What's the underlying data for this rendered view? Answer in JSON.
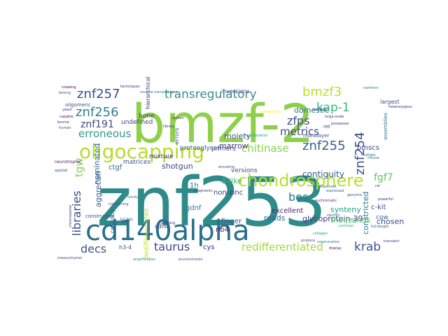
{
  "words": [
    {
      "text": "znf253",
      "color": "#2e8b8a"
    },
    {
      "text": "bmzf-2",
      "color": "#8fd04b"
    },
    {
      "text": "cd140alpha",
      "color": "#2c6e8e"
    },
    {
      "text": "oligocapping",
      "color": "#b5dd2b"
    },
    {
      "text": "chondrosphere",
      "color": "#b8de2e"
    },
    {
      "text": "znf257",
      "color": "#3a4f8a"
    },
    {
      "text": "znf256",
      "color": "#2f7f8e"
    },
    {
      "text": "znf255",
      "color": "#3b5d8c"
    },
    {
      "text": "znf254",
      "color": "#3d4c8a"
    },
    {
      "text": "transregulatory",
      "color": "#3a8c8b"
    },
    {
      "text": "bmzf3",
      "color": "#bfdf27"
    },
    {
      "text": "kap-1",
      "color": "#35b779"
    },
    {
      "text": "zfps",
      "color": "#3e4b8a"
    },
    {
      "text": "metrics",
      "color": "#404788"
    },
    {
      "text": "erroneous",
      "color": "#33978c"
    },
    {
      "text": "chitinase",
      "color": "#86d549"
    },
    {
      "text": "redifferentiated",
      "color": "#a2da37"
    },
    {
      "text": "krab",
      "color": "#3b528b"
    },
    {
      "text": "taurus",
      "color": "#3e4989"
    },
    {
      "text": "decs",
      "color": "#39568c"
    },
    {
      "text": "libraries",
      "color": "#3e4a89"
    },
    {
      "text": "bos",
      "color": "#2a788e"
    },
    {
      "text": "fgf7",
      "color": "#5ec962"
    },
    {
      "text": "znf191",
      "color": "#3f4788"
    },
    {
      "text": "tgw",
      "color": "#86d549"
    },
    {
      "text": "contiguity",
      "color": "#355f8d"
    },
    {
      "text": "marrow",
      "color": "#46337e"
    },
    {
      "text": "moiety",
      "color": "#3e4c8a"
    },
    {
      "text": "domestic",
      "color": "#2a7b8e"
    },
    {
      "text": "shotgun",
      "color": "#3f4889"
    },
    {
      "text": "glycoprotein-39",
      "color": "#443983"
    },
    {
      "text": "constricted",
      "color": "#2a768e"
    },
    {
      "text": "synteny",
      "color": "#20a386"
    },
    {
      "text": "reads",
      "color": "#31688e"
    },
    {
      "text": "chosen",
      "color": "#404688"
    },
    {
      "text": "aggrecan",
      "color": "#365c8d"
    },
    {
      "text": "nominated",
      "color": "#31668e"
    },
    {
      "text": "thousands",
      "color": "#4ac16d"
    },
    {
      "text": "3-like",
      "color": "#3bbb75"
    },
    {
      "text": "c-kit",
      "color": "#3c508b"
    },
    {
      "text": "gdnf",
      "color": "#287c8e"
    },
    {
      "text": "nb4",
      "color": "#471164"
    },
    {
      "text": "cys",
      "color": "#46307e"
    },
    {
      "text": "1h",
      "color": "#2d718e"
    },
    {
      "text": "finger",
      "color": "#3b528b"
    },
    {
      "text": "non-zinc",
      "color": "#453781"
    },
    {
      "text": "bmscs",
      "color": "#404588"
    },
    {
      "text": "excellent",
      "color": "#482475"
    },
    {
      "text": "primers",
      "color": "#3e4c8a"
    },
    {
      "text": "versions",
      "color": "#39558c"
    },
    {
      "text": "ctgf",
      "color": "#31688e"
    },
    {
      "text": "matrices",
      "color": "#3a538b"
    },
    {
      "text": "mixture",
      "color": "#46307e"
    },
    {
      "text": "proteoglycan",
      "color": "#3b528b"
    },
    {
      "text": "bone",
      "color": "#443983"
    },
    {
      "text": "undefined",
      "color": "#424086"
    },
    {
      "text": "oligomeric",
      "color": "#3d4e8a"
    },
    {
      "text": "inversions",
      "color": "#3f4889"
    },
    {
      "text": "hierarchical",
      "color": "#46317e"
    },
    {
      "text": "errors",
      "color": "#355e8d"
    },
    {
      "text": "largest",
      "color": "#3b528b"
    },
    {
      "text": "cow",
      "color": "#2d708e"
    },
    {
      "text": "cdna",
      "color": "#443a83"
    },
    {
      "text": "scan",
      "color": "#2e6f8e"
    },
    {
      "text": "covering",
      "color": "#2f6c8e"
    },
    {
      "text": "h3-4",
      "color": "#3a538b"
    },
    {
      "text": "dedifferentiated",
      "color": "#c5e021"
    },
    {
      "text": "monolayer",
      "color": "#3e4a89"
    },
    {
      "text": "ret",
      "color": "#453882"
    },
    {
      "text": "constructed",
      "color": "#3f4889"
    },
    {
      "text": "neurotrophic",
      "color": "#48186a"
    },
    {
      "text": "assemblies",
      "color": "#2c728e"
    },
    {
      "text": "creating",
      "color": "#440154"
    },
    {
      "text": "techniques",
      "color": "#472d7b"
    },
    {
      "text": "reverse transcriptase",
      "color": "#2c728e"
    },
    {
      "text": "large-scale",
      "color": "#46327e"
    },
    {
      "text": "comparison",
      "color": "#fde725"
    },
    {
      "text": "hybridization",
      "color": "#1f9e89"
    },
    {
      "text": "euchromatic",
      "color": "#453781"
    },
    {
      "text": "dispersed",
      "color": "#2d718e"
    },
    {
      "text": "applied",
      "color": "#3b528b"
    },
    {
      "text": "yeast",
      "color": "#46327e"
    },
    {
      "text": "belong",
      "color": "#38598c"
    },
    {
      "text": "capable",
      "color": "#48186a"
    },
    {
      "text": "bovine",
      "color": "#46327e"
    },
    {
      "text": "human",
      "color": "#3e4989"
    },
    {
      "text": "mouse",
      "color": "#2a788e"
    },
    {
      "text": "rat",
      "color": "#433e85"
    },
    {
      "text": "cartilage",
      "color": "#35b779"
    },
    {
      "text": "derived",
      "color": "#482878"
    },
    {
      "text": "northern",
      "color": "#2c728e"
    },
    {
      "text": "genomic",
      "color": "#3b528b"
    },
    {
      "text": "screen",
      "color": "#481f70"
    },
    {
      "text": "library",
      "color": "#46307e"
    },
    {
      "text": "possesses",
      "color": "#472a7a"
    },
    {
      "text": "encoding",
      "color": "#3e4989"
    },
    {
      "text": "fragments",
      "color": "#472f7d"
    },
    {
      "text": "collagen",
      "color": "#1fa088"
    },
    {
      "text": "regeneration",
      "color": "#287d8e"
    },
    {
      "text": "full-length",
      "color": "#3b528b"
    },
    {
      "text": "expressed",
      "color": "#31688e"
    },
    {
      "text": "amplification",
      "color": "#26828e"
    },
    {
      "text": "environments",
      "color": "#3e4989"
    },
    {
      "text": "mesenchymal",
      "color": "#433e85"
    },
    {
      "text": "profiling",
      "color": "#46327e"
    },
    {
      "text": "chromosome",
      "color": "#472d7b"
    },
    {
      "text": "family",
      "color": "#2c728e"
    },
    {
      "text": "intervening",
      "color": "#3e4c8a"
    },
    {
      "text": "powerful",
      "color": "#46307e"
    },
    {
      "text": "display",
      "color": "#471063"
    },
    {
      "text": "produce",
      "color": "#3e4989"
    },
    {
      "text": "identify",
      "color": "#31688e"
    },
    {
      "text": "transient",
      "color": "#46327e"
    },
    {
      "text": "multiple",
      "color": "#2e6e8e"
    },
    {
      "text": "heterozygous",
      "color": "#472d7b"
    }
  ]
}
